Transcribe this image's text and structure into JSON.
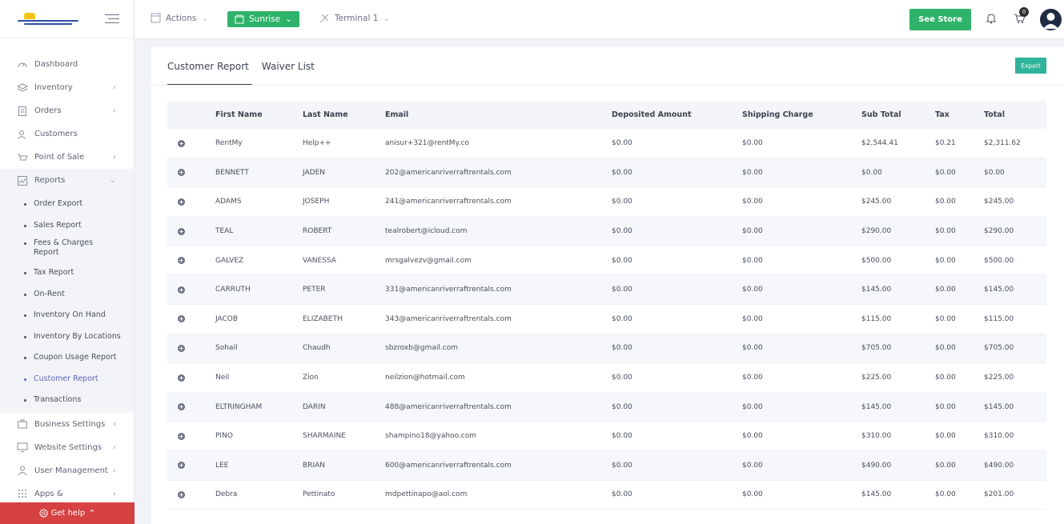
{
  "sidebar": {
    "items": [
      {
        "label": "Dashboard",
        "icon": "dashboard-icon",
        "chevron": false
      },
      {
        "label": "Inventory",
        "icon": "inventory-icon",
        "chevron": true
      },
      {
        "label": "Orders",
        "icon": "orders-icon",
        "chevron": true
      },
      {
        "label": "Customers",
        "icon": "customers-icon",
        "chevron": false
      },
      {
        "label": "Point of Sale",
        "icon": "pos-icon",
        "chevron": true
      },
      {
        "label": "Reports",
        "icon": "reports-icon",
        "chevron": true,
        "expanded": true
      }
    ],
    "report_subitems": [
      "Order Export",
      "Sales Report",
      "Fees & Charges Report",
      "Tax Report",
      "On-Rent",
      "Inventory On Hand",
      "Inventory By Locations",
      "Coupon Usage Report",
      "Customer Report",
      "Transactions"
    ],
    "current_subitem": "Customer Report",
    "bottom_items": [
      {
        "label": "Business Settings",
        "icon": "business-settings-icon"
      },
      {
        "label": "Website Settings",
        "icon": "website-settings-icon"
      },
      {
        "label": "User Management",
        "icon": "user-management-icon"
      },
      {
        "label": "Apps &",
        "icon": "apps-icon"
      }
    ],
    "get_help": "Get help"
  },
  "topbar": {
    "actions": "Actions",
    "store": "Sunrise",
    "terminal": "Terminal 1",
    "see_store": "See Store",
    "cart_count": "0"
  },
  "tabs": [
    "Customer Report",
    "Waiver List"
  ],
  "export_label": "Export",
  "table": {
    "headers": [
      "First Name",
      "Last Name",
      "Email",
      "Deposited Amount",
      "Shipping Charge",
      "Sub Total",
      "Tax",
      "Total"
    ],
    "rows": [
      [
        "RentMy",
        "Help++",
        "anisur+321@rentMy.co",
        "$0.00",
        "$0.00",
        "$2,544.41",
        "$0.21",
        "$2,311.62"
      ],
      [
        "BENNETT",
        "JADEN",
        "202@americanriverraftrentals.com",
        "$0.00",
        "$0.00",
        "$0.00",
        "$0.00",
        "$0.00"
      ],
      [
        "ADAMS",
        "JOSEPH",
        "241@americanriverraftrentals.com",
        "$0.00",
        "$0.00",
        "$245.00",
        "$0.00",
        "$245.00"
      ],
      [
        "TEAL",
        "ROBERT",
        "tealrobert@icloud.com",
        "$0.00",
        "$0.00",
        "$290.00",
        "$0.00",
        "$290.00"
      ],
      [
        "GALVEZ",
        "VANESSA",
        "mrsgalvezv@gmail.com",
        "$0.00",
        "$0.00",
        "$500.00",
        "$0.00",
        "$500.00"
      ],
      [
        "CARRUTH",
        "PETER",
        "331@americanriverraftrentals.com",
        "$0.00",
        "$0.00",
        "$145.00",
        "$0.00",
        "$145.00"
      ],
      [
        "JACOB",
        "ELIZABETH",
        "343@americanriverraftrentals.com",
        "$0.00",
        "$0.00",
        "$115.00",
        "$0.00",
        "$115.00"
      ],
      [
        "Sohail",
        "Chaudh",
        "sbzroxb@gmail.com",
        "$0.00",
        "$0.00",
        "$705.00",
        "$0.00",
        "$705.00"
      ],
      [
        "Neil",
        "Zion",
        "neilzion@hotmail.com",
        "$0.00",
        "$0.00",
        "$225.00",
        "$0.00",
        "$225.00"
      ],
      [
        "ELTRINGHAM",
        "DARIN",
        "488@americanriverraftrentals.com",
        "$0.00",
        "$0.00",
        "$145.00",
        "$0.00",
        "$145.00"
      ],
      [
        "PINO",
        "SHARMAINE",
        "shampino18@yahoo.com",
        "$0.00",
        "$0.00",
        "$310.00",
        "$0.00",
        "$310.00"
      ],
      [
        "LEE",
        "BRIAN",
        "600@americanriverraftrentals.com",
        "$0.00",
        "$0.00",
        "$490.00",
        "$0.00",
        "$490.00"
      ],
      [
        "Debra",
        "Pettinato",
        "mdpettinapo@aol.com",
        "$0.00",
        "$0.00",
        "$145.00",
        "$0.00",
        "$201.00"
      ]
    ]
  }
}
